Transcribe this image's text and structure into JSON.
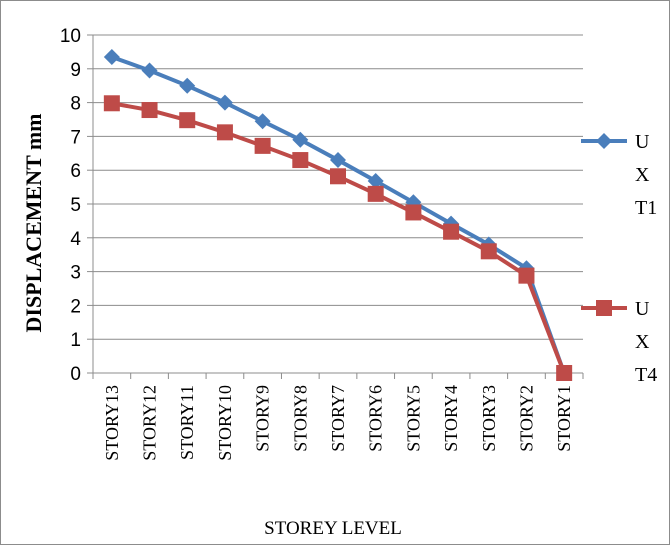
{
  "chart_data": {
    "type": "line",
    "categories": [
      "STORY13",
      "STORY12",
      "STORY11",
      "STORY10",
      "STORY9",
      "STORY8",
      "STORY7",
      "STORY6",
      "STORY5",
      "STORY4",
      "STORY3",
      "STORY2",
      "STORY1"
    ],
    "series": [
      {
        "name": "UX T1",
        "legend_lines": [
          "U",
          "X",
          "T1"
        ],
        "color": "#4A7EBB",
        "marker": "diamond",
        "values": [
          9.35,
          8.95,
          8.5,
          8.0,
          7.45,
          6.9,
          6.3,
          5.68,
          5.05,
          4.42,
          3.8,
          3.1,
          0
        ]
      },
      {
        "name": "UX T4",
        "legend_lines": [
          "U",
          "X",
          "T4"
        ],
        "color": "#BE4B48",
        "marker": "square",
        "values": [
          7.98,
          7.78,
          7.48,
          7.12,
          6.72,
          6.3,
          5.82,
          5.3,
          4.75,
          4.18,
          3.6,
          2.88,
          0
        ]
      }
    ],
    "xlabel": "STOREY LEVEL",
    "ylabel": "DISPLACEMENT mm",
    "ylim": [
      0,
      10
    ],
    "yticks": [
      0,
      1,
      2,
      3,
      4,
      5,
      6,
      7,
      8,
      9,
      10
    ],
    "grid": true,
    "legend_position": "right"
  }
}
